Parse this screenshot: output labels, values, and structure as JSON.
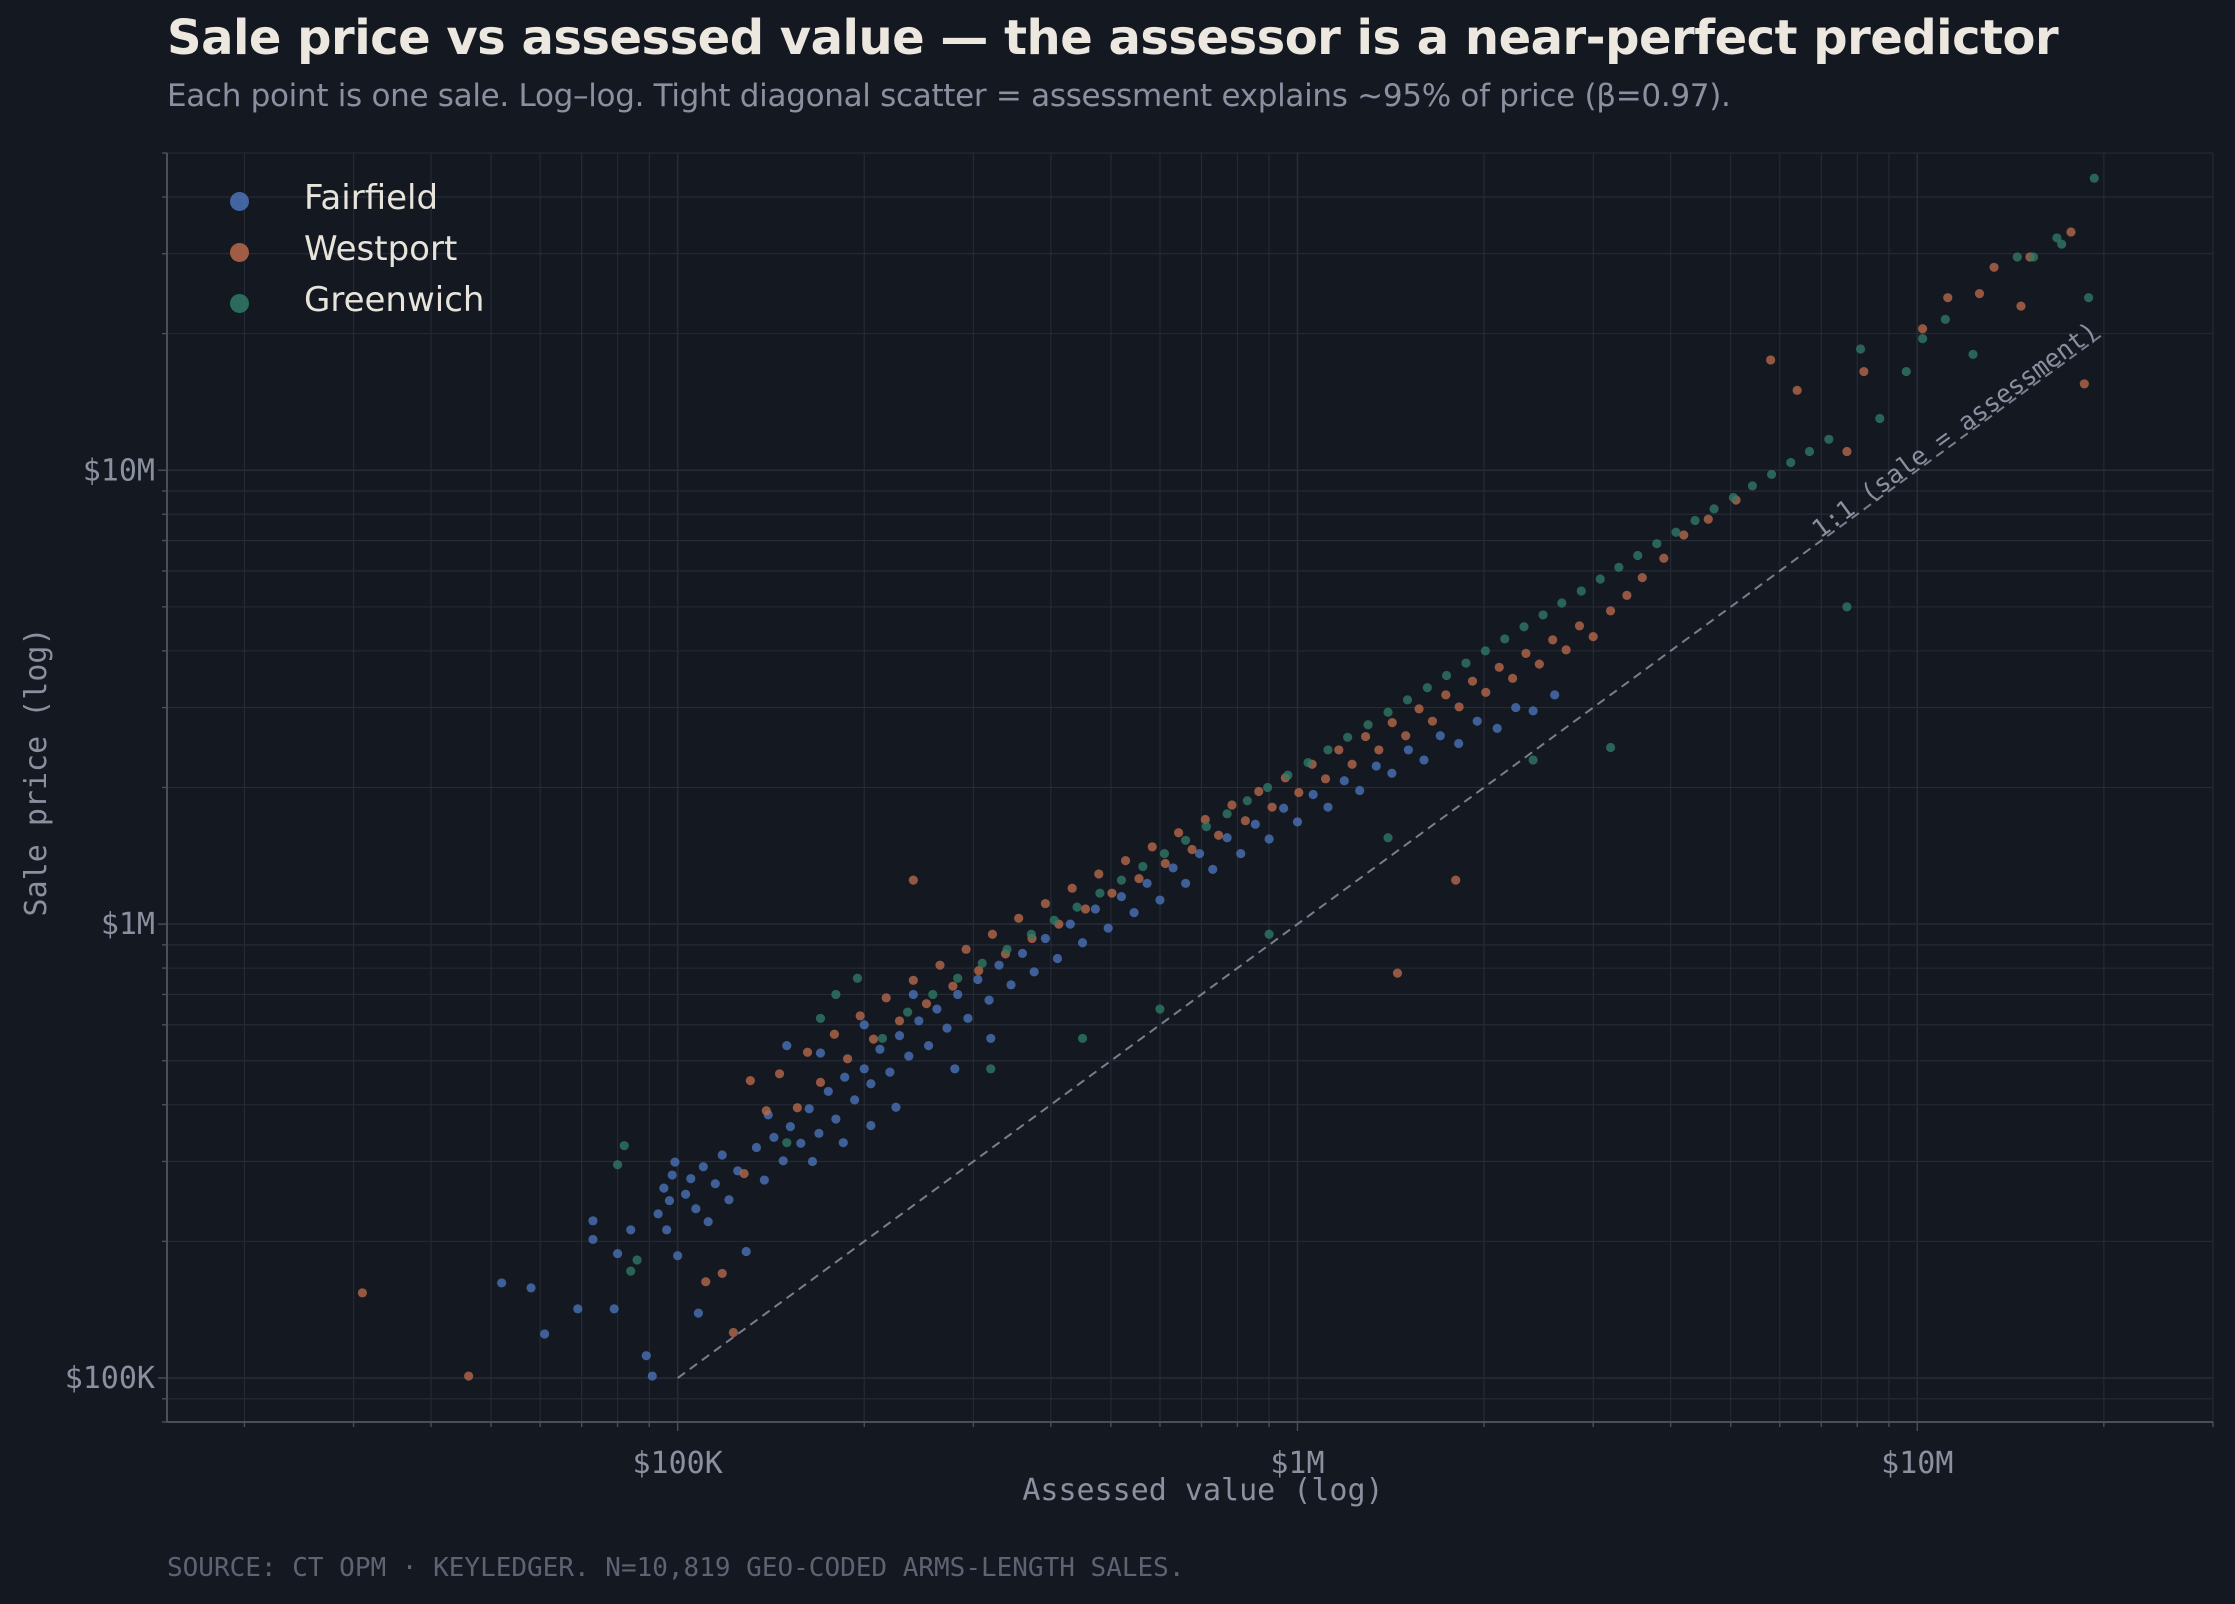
{
  "header": {
    "title": "Sale price vs assessed value — the assessor is a near-perfect predictor",
    "subtitle": "Each point is one sale. Log–log. Tight diagonal scatter = assessment explains ~95% of price (β=0.97)."
  },
  "footer": {
    "source": "SOURCE: CT OPM · KEYLEDGER. N=10,819 GEO-CODED ARMS-LENGTH SALES."
  },
  "colors": {
    "background": "#141821",
    "grid": "#262b36",
    "axis": "#4a4f5c",
    "tick_text": "#8a90a0",
    "reference_line": "#8a90a0"
  },
  "chart_data": {
    "type": "scatter",
    "xlabel": "Assessed value (log)",
    "ylabel": "Sale price (log)",
    "x_scale": "log",
    "y_scale": "log",
    "xlim": [
      15000,
      30000000
    ],
    "ylim": [
      80000,
      50000000
    ],
    "x_ticks": [
      {
        "value": 100000,
        "label": "$100K"
      },
      {
        "value": 1000000,
        "label": "$1M"
      },
      {
        "value": 10000000,
        "label": "$10M"
      }
    ],
    "y_ticks": [
      {
        "value": 100000,
        "label": "$100K"
      },
      {
        "value": 1000000,
        "label": "$1M"
      },
      {
        "value": 10000000,
        "label": "$10M"
      }
    ],
    "grid": true,
    "legend_position": "top-left",
    "reference_line": {
      "label": "1:1 (sale = assessment)",
      "x": [
        100000,
        20000000
      ],
      "y": [
        100000,
        20000000
      ]
    },
    "series": [
      {
        "name": "Fairfield",
        "color": "#4a73b8",
        "points": [
          [
            52000,
            162000
          ],
          [
            58000,
            158000
          ],
          [
            61000,
            125000
          ],
          [
            69000,
            142000
          ],
          [
            73000,
            202000
          ],
          [
            73000,
            222000
          ],
          [
            79000,
            142000
          ],
          [
            80000,
            188000
          ],
          [
            84000,
            212000
          ],
          [
            89000,
            112000
          ],
          [
            91000,
            101000
          ],
          [
            93000,
            230000
          ],
          [
            95000,
            262000
          ],
          [
            96000,
            212000
          ],
          [
            97000,
            246000
          ],
          [
            98000,
            280000
          ],
          [
            99000,
            299000
          ],
          [
            100000,
            186000
          ],
          [
            103000,
            254000
          ],
          [
            105000,
            275000
          ],
          [
            107000,
            236000
          ],
          [
            108000,
            139000
          ],
          [
            110000,
            292000
          ],
          [
            112000,
            221000
          ],
          [
            115000,
            268000
          ],
          [
            118000,
            310000
          ],
          [
            121000,
            247000
          ],
          [
            125000,
            286000
          ],
          [
            129000,
            190000
          ],
          [
            134000,
            322000
          ],
          [
            138000,
            273000
          ],
          [
            143000,
            339000
          ],
          [
            148000,
            301000
          ],
          [
            152000,
            358000
          ],
          [
            158000,
            329000
          ],
          [
            163000,
            392000
          ],
          [
            169000,
            346000
          ],
          [
            175000,
            428000
          ],
          [
            180000,
            372000
          ],
          [
            186000,
            460000
          ],
          [
            193000,
            410000
          ],
          [
            200000,
            480000
          ],
          [
            205000,
            445000
          ],
          [
            212000,
            530000
          ],
          [
            220000,
            472000
          ],
          [
            228000,
            568000
          ],
          [
            236000,
            512000
          ],
          [
            245000,
            612000
          ],
          [
            254000,
            540000
          ],
          [
            262000,
            650000
          ],
          [
            272000,
            590000
          ],
          [
            283000,
            700000
          ],
          [
            294000,
            620000
          ],
          [
            305000,
            755000
          ],
          [
            318000,
            680000
          ],
          [
            330000,
            812000
          ],
          [
            345000,
            735000
          ],
          [
            360000,
            862000
          ],
          [
            376000,
            785000
          ],
          [
            392000,
            930000
          ],
          [
            410000,
            840000
          ],
          [
            430000,
            1000000
          ],
          [
            450000,
            910000
          ],
          [
            472000,
            1080000
          ],
          [
            495000,
            980000
          ],
          [
            520000,
            1150000
          ],
          [
            545000,
            1060000
          ],
          [
            572000,
            1230000
          ],
          [
            600000,
            1130000
          ],
          [
            630000,
            1330000
          ],
          [
            660000,
            1230000
          ],
          [
            695000,
            1430000
          ],
          [
            730000,
            1320000
          ],
          [
            770000,
            1550000
          ],
          [
            810000,
            1430000
          ],
          [
            855000,
            1660000
          ],
          [
            900000,
            1540000
          ],
          [
            950000,
            1800000
          ],
          [
            1000000,
            1680000
          ],
          [
            1060000,
            1930000
          ],
          [
            1120000,
            1810000
          ],
          [
            1190000,
            2070000
          ],
          [
            1260000,
            1970000
          ],
          [
            1340000,
            2230000
          ],
          [
            1420000,
            2150000
          ],
          [
            1510000,
            2420000
          ],
          [
            1600000,
            2300000
          ],
          [
            1700000,
            2600000
          ],
          [
            1820000,
            2500000
          ],
          [
            1950000,
            2800000
          ],
          [
            2100000,
            2700000
          ],
          [
            2250000,
            3000000
          ],
          [
            2400000,
            2950000
          ],
          [
            2600000,
            3200000
          ],
          [
            170000,
            520000
          ],
          [
            150000,
            540000
          ],
          [
            200000,
            600000
          ],
          [
            240000,
            700000
          ],
          [
            280000,
            480000
          ],
          [
            320000,
            560000
          ],
          [
            140000,
            380000
          ],
          [
            165000,
            300000
          ],
          [
            185000,
            330000
          ],
          [
            205000,
            360000
          ],
          [
            225000,
            395000
          ]
        ]
      },
      {
        "name": "Westport",
        "color": "#b8694a",
        "points": [
          [
            31000,
            154000
          ],
          [
            46000,
            101000
          ],
          [
            111000,
            163000
          ],
          [
            118000,
            170000
          ],
          [
            123000,
            126000
          ],
          [
            128000,
            282000
          ],
          [
            131000,
            452000
          ],
          [
            139000,
            388000
          ],
          [
            146000,
            468000
          ],
          [
            156000,
            394000
          ],
          [
            162000,
            522000
          ],
          [
            170000,
            448000
          ],
          [
            179000,
            572000
          ],
          [
            188000,
            505000
          ],
          [
            197000,
            628000
          ],
          [
            207000,
            558000
          ],
          [
            217000,
            688000
          ],
          [
            228000,
            612000
          ],
          [
            240000,
            1250000
          ],
          [
            240000,
            752000
          ],
          [
            252000,
            668000
          ],
          [
            265000,
            812000
          ],
          [
            278000,
            730000
          ],
          [
            292000,
            880000
          ],
          [
            306000,
            790000
          ],
          [
            322000,
            950000
          ],
          [
            338000,
            860000
          ],
          [
            355000,
            1030000
          ],
          [
            373000,
            930000
          ],
          [
            392000,
            1110000
          ],
          [
            412000,
            1000000
          ],
          [
            433000,
            1200000
          ],
          [
            455000,
            1080000
          ],
          [
            478000,
            1290000
          ],
          [
            502000,
            1170000
          ],
          [
            528000,
            1380000
          ],
          [
            555000,
            1260000
          ],
          [
            583000,
            1480000
          ],
          [
            612000,
            1360000
          ],
          [
            643000,
            1590000
          ],
          [
            676000,
            1460000
          ],
          [
            710000,
            1700000
          ],
          [
            746000,
            1570000
          ],
          [
            784000,
            1830000
          ],
          [
            824000,
            1690000
          ],
          [
            866000,
            1960000
          ],
          [
            910000,
            1810000
          ],
          [
            956000,
            2100000
          ],
          [
            1005000,
            1950000
          ],
          [
            1056000,
            2250000
          ],
          [
            1110000,
            2090000
          ],
          [
            1166000,
            2420000
          ],
          [
            1225000,
            2250000
          ],
          [
            1288000,
            2590000
          ],
          [
            1353000,
            2420000
          ],
          [
            1422000,
            2780000
          ],
          [
            1495000,
            2600000
          ],
          [
            1571000,
            2980000
          ],
          [
            1651000,
            2800000
          ],
          [
            1735000,
            3200000
          ],
          [
            1823000,
            3010000
          ],
          [
            1916000,
            3430000
          ],
          [
            2013000,
            3240000
          ],
          [
            2116000,
            3680000
          ],
          [
            2224000,
            3480000
          ],
          [
            2337000,
            3950000
          ],
          [
            2456000,
            3740000
          ],
          [
            2581000,
            4230000
          ],
          [
            2713000,
            4020000
          ],
          [
            2851000,
            4540000
          ],
          [
            3000000,
            4300000
          ],
          [
            3200000,
            4900000
          ],
          [
            3400000,
            5300000
          ],
          [
            3600000,
            5800000
          ],
          [
            3900000,
            6400000
          ],
          [
            4200000,
            7200000
          ],
          [
            4600000,
            7800000
          ],
          [
            5100000,
            8600000
          ],
          [
            5800000,
            17500000
          ],
          [
            6400000,
            15000000
          ],
          [
            7700000,
            11000000
          ],
          [
            8200000,
            16500000
          ],
          [
            10200000,
            20500000
          ],
          [
            11200000,
            24000000
          ],
          [
            12600000,
            24500000
          ],
          [
            13300000,
            28000000
          ],
          [
            14700000,
            23000000
          ],
          [
            15200000,
            29500000
          ],
          [
            17700000,
            33500000
          ],
          [
            18600000,
            15500000
          ],
          [
            1800000,
            1250000
          ],
          [
            1450000,
            780000
          ]
        ]
      },
      {
        "name": "Greenwich",
        "color": "#2f7a66",
        "points": [
          [
            80000,
            295000
          ],
          [
            82000,
            325000
          ],
          [
            84000,
            172000
          ],
          [
            86000,
            182000
          ],
          [
            150000,
            330000
          ],
          [
            170000,
            620000
          ],
          [
            180000,
            700000
          ],
          [
            195000,
            760000
          ],
          [
            214000,
            560000
          ],
          [
            235000,
            640000
          ],
          [
            258000,
            700000
          ],
          [
            283000,
            760000
          ],
          [
            310000,
            820000
          ],
          [
            340000,
            880000
          ],
          [
            372000,
            950000
          ],
          [
            405000,
            1020000
          ],
          [
            441000,
            1090000
          ],
          [
            480000,
            1170000
          ],
          [
            520000,
            1250000
          ],
          [
            563000,
            1340000
          ],
          [
            610000,
            1430000
          ],
          [
            660000,
            1530000
          ],
          [
            713000,
            1640000
          ],
          [
            770000,
            1750000
          ],
          [
            830000,
            1870000
          ],
          [
            895000,
            2000000
          ],
          [
            965000,
            2130000
          ],
          [
            1040000,
            2270000
          ],
          [
            1120000,
            2420000
          ],
          [
            1205000,
            2580000
          ],
          [
            1300000,
            2750000
          ],
          [
            1400000,
            2930000
          ],
          [
            1505000,
            3120000
          ],
          [
            1620000,
            3320000
          ],
          [
            1740000,
            3530000
          ],
          [
            1870000,
            3760000
          ],
          [
            2010000,
            4000000
          ],
          [
            2160000,
            4250000
          ],
          [
            2320000,
            4520000
          ],
          [
            2490000,
            4800000
          ],
          [
            2670000,
            5100000
          ],
          [
            2870000,
            5420000
          ],
          [
            3080000,
            5760000
          ],
          [
            3300000,
            6110000
          ],
          [
            3540000,
            6490000
          ],
          [
            3800000,
            6890000
          ],
          [
            4080000,
            7300000
          ],
          [
            4380000,
            7750000
          ],
          [
            4700000,
            8220000
          ],
          [
            5050000,
            8710000
          ],
          [
            5420000,
            9240000
          ],
          [
            5820000,
            9790000
          ],
          [
            6250000,
            10400000
          ],
          [
            6700000,
            11000000
          ],
          [
            7200000,
            11700000
          ],
          [
            7700000,
            5000000
          ],
          [
            8100000,
            18500000
          ],
          [
            8700000,
            13000000
          ],
          [
            9600000,
            16500000
          ],
          [
            10200000,
            19500000
          ],
          [
            11100000,
            21500000
          ],
          [
            12300000,
            18000000
          ],
          [
            14500000,
            29500000
          ],
          [
            15400000,
            29500000
          ],
          [
            16800000,
            32500000
          ],
          [
            17100000,
            31500000
          ],
          [
            18900000,
            24000000
          ],
          [
            19300000,
            44000000
          ],
          [
            3200000,
            2450000
          ],
          [
            2400000,
            2300000
          ],
          [
            1400000,
            1550000
          ],
          [
            900000,
            950000
          ],
          [
            600000,
            650000
          ],
          [
            450000,
            560000
          ],
          [
            320000,
            480000
          ]
        ]
      }
    ]
  }
}
